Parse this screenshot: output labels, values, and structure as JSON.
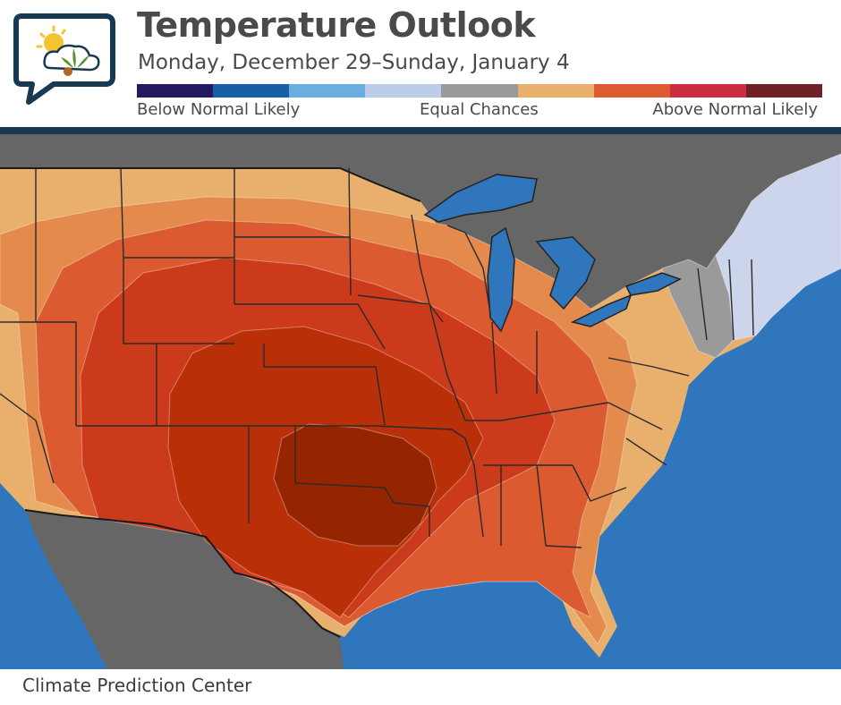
{
  "header": {
    "title": "Temperature Outlook",
    "subtitle": "Monday, December 29–Sunday, January 4"
  },
  "legend": {
    "colors": [
      "#23195e",
      "#1760a8",
      "#6aaee0",
      "#bccbe8",
      "#9a9a9a",
      "#e8b06c",
      "#de5a30",
      "#cc2d42",
      "#6e2026"
    ],
    "below_label": "Below Normal Likely",
    "equal_label": "Equal Chances",
    "above_label": "Above Normal Likely"
  },
  "map": {
    "ocean_color": "#2f76bd",
    "land_outside_color": "#666666",
    "category_colors": {
      "above_33_40": "#e8b06c",
      "above_40_50": "#e48a4c",
      "above_50_60": "#db5a30",
      "above_60_70": "#cc3a1c",
      "above_70_80": "#b93008",
      "above_80_90": "#952400",
      "below_33_40": "#cdd5ec",
      "equal_chances": "#9a9a9a"
    }
  },
  "footer": {
    "credit": "Climate Prediction Center"
  }
}
